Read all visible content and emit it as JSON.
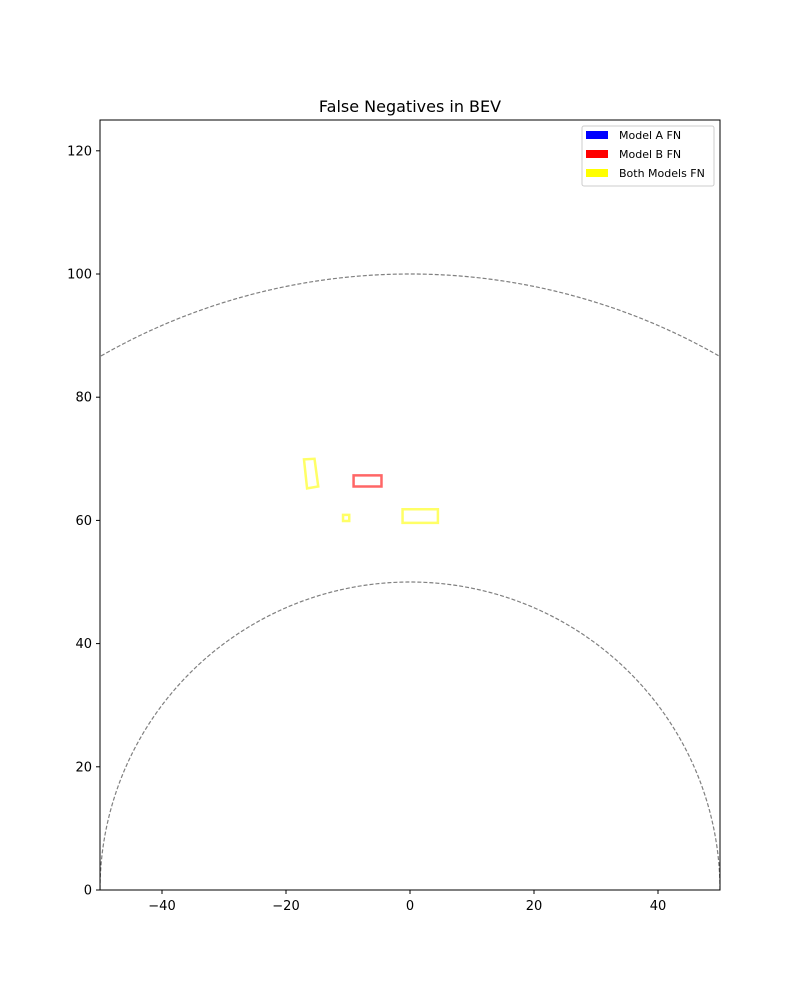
{
  "chart_data": {
    "type": "scatter",
    "title": "False Negatives in BEV",
    "xlabel": "",
    "ylabel": "",
    "xlim": [
      -50,
      50
    ],
    "ylim": [
      0,
      125
    ],
    "x_ticks": [
      -40,
      -20,
      0,
      20,
      40
    ],
    "y_ticks": [
      0,
      20,
      40,
      60,
      80,
      100,
      120
    ],
    "x_tick_labels": [
      "−40",
      "−20",
      "0",
      "20",
      "40"
    ],
    "y_tick_labels": [
      "0",
      "20",
      "40",
      "60",
      "80",
      "100",
      "120"
    ],
    "grid": false,
    "legend_placement": "top-right",
    "range_circles": [
      {
        "radius": 50,
        "color": "#808080",
        "style": "dashed"
      },
      {
        "radius": 100,
        "color": "#808080",
        "style": "dashed"
      }
    ],
    "legend": [
      {
        "label": "Model A FN",
        "color": "#0000ff"
      },
      {
        "label": "Model B FN",
        "color": "#ff0000"
      },
      {
        "label": "Both Models FN",
        "color": "#ffff00"
      }
    ],
    "series": [
      {
        "name": "Model A FN",
        "color": "#0000ff",
        "boxes": []
      },
      {
        "name": "Model B FN",
        "color": "#ff0000",
        "boxes": [
          {
            "corners": [
              [
                -9.1,
                65.5
              ],
              [
                -4.6,
                65.5
              ],
              [
                -4.6,
                67.3
              ],
              [
                -9.1,
                67.3
              ]
            ]
          }
        ]
      },
      {
        "name": "Both Models FN",
        "color": "#ffff00",
        "boxes": [
          {
            "corners": [
              [
                -17.1,
                69.9
              ],
              [
                -15.4,
                70.0
              ],
              [
                -14.8,
                65.5
              ],
              [
                -16.6,
                65.2
              ]
            ]
          },
          {
            "corners": [
              [
                -1.2,
                59.6
              ],
              [
                4.5,
                59.6
              ],
              [
                4.5,
                61.8
              ],
              [
                -1.2,
                61.8
              ]
            ]
          },
          {
            "corners": [
              [
                -10.8,
                59.9
              ],
              [
                -9.8,
                59.9
              ],
              [
                -9.8,
                60.9
              ],
              [
                -10.8,
                60.9
              ]
            ]
          }
        ]
      }
    ]
  }
}
